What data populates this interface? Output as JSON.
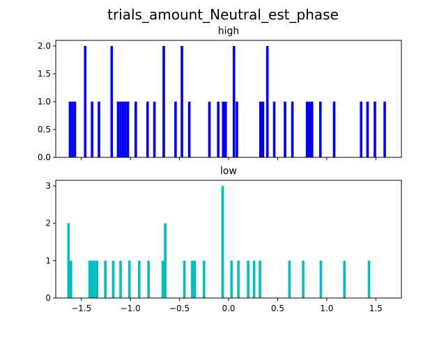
{
  "figure": {
    "title": "trials_amount_Neutral_est_phase"
  },
  "chart_data": [
    {
      "type": "bar",
      "title": "high",
      "color": "#0000ff",
      "xlim": [
        -1.76,
        1.76
      ],
      "ylim": [
        0,
        2.1
      ],
      "xticks": [
        -1.5,
        -1.0,
        -0.5,
        0.0,
        0.5,
        1.0,
        1.5
      ],
      "xtick_labels": [],
      "yticks": [
        0.0,
        0.5,
        1.0,
        1.5,
        2.0
      ],
      "ytick_labels": [
        "0.0",
        "0.5",
        "1.0",
        "1.5",
        "2.0"
      ],
      "bin_width": 0.0257,
      "bars": [
        {
          "x": -1.615,
          "v": 1
        },
        {
          "x": -1.59,
          "v": 1
        },
        {
          "x": -1.565,
          "v": 1
        },
        {
          "x": -1.46,
          "v": 2
        },
        {
          "x": -1.39,
          "v": 1
        },
        {
          "x": -1.32,
          "v": 1
        },
        {
          "x": -1.19,
          "v": 2
        },
        {
          "x": -1.125,
          "v": 1
        },
        {
          "x": -1.1,
          "v": 1
        },
        {
          "x": -1.075,
          "v": 1
        },
        {
          "x": -1.05,
          "v": 1
        },
        {
          "x": -1.025,
          "v": 1
        },
        {
          "x": -0.945,
          "v": 1
        },
        {
          "x": -0.825,
          "v": 1
        },
        {
          "x": -0.755,
          "v": 1
        },
        {
          "x": -0.66,
          "v": 2
        },
        {
          "x": -0.54,
          "v": 1
        },
        {
          "x": -0.475,
          "v": 2
        },
        {
          "x": -0.4,
          "v": 1
        },
        {
          "x": -0.195,
          "v": 1
        },
        {
          "x": -0.105,
          "v": 1
        },
        {
          "x": -0.055,
          "v": 1
        },
        {
          "x": -0.03,
          "v": 1
        },
        {
          "x": 0.055,
          "v": 2
        },
        {
          "x": 0.085,
          "v": 1
        },
        {
          "x": 0.325,
          "v": 1
        },
        {
          "x": 0.35,
          "v": 1
        },
        {
          "x": 0.395,
          "v": 2
        },
        {
          "x": 0.465,
          "v": 1
        },
        {
          "x": 0.575,
          "v": 1
        },
        {
          "x": 0.65,
          "v": 1
        },
        {
          "x": 0.8,
          "v": 1
        },
        {
          "x": 0.825,
          "v": 1
        },
        {
          "x": 0.85,
          "v": 1
        },
        {
          "x": 0.935,
          "v": 1
        },
        {
          "x": 1.075,
          "v": 1
        },
        {
          "x": 1.35,
          "v": 1
        },
        {
          "x": 1.415,
          "v": 1
        },
        {
          "x": 1.49,
          "v": 1
        },
        {
          "x": 1.59,
          "v": 1
        }
      ]
    },
    {
      "type": "bar",
      "title": "low",
      "color": "#00bfbf",
      "xlim": [
        -1.76,
        1.76
      ],
      "ylim": [
        0,
        3.15
      ],
      "xticks": [
        -1.5,
        -1.0,
        -0.5,
        0.0,
        0.5,
        1.0,
        1.5
      ],
      "xtick_labels": [
        "−1.5",
        "−1.0",
        "−0.5",
        "0.0",
        "0.5",
        "1.0",
        "1.5"
      ],
      "yticks": [
        0,
        1,
        2,
        3
      ],
      "ytick_labels": [
        "0",
        "1",
        "2",
        "3"
      ],
      "bin_width": 0.0257,
      "bars": [
        {
          "x": -1.63,
          "v": 2
        },
        {
          "x": -1.605,
          "v": 1
        },
        {
          "x": -1.415,
          "v": 1
        },
        {
          "x": -1.39,
          "v": 1
        },
        {
          "x": -1.365,
          "v": 1
        },
        {
          "x": -1.34,
          "v": 1
        },
        {
          "x": -1.255,
          "v": 1
        },
        {
          "x": -1.175,
          "v": 1
        },
        {
          "x": -1.1,
          "v": 1
        },
        {
          "x": -1.01,
          "v": 1
        },
        {
          "x": -0.91,
          "v": 1
        },
        {
          "x": -0.815,
          "v": 1
        },
        {
          "x": -0.67,
          "v": 1
        },
        {
          "x": -0.645,
          "v": 2
        },
        {
          "x": -0.45,
          "v": 1
        },
        {
          "x": -0.37,
          "v": 1
        },
        {
          "x": -0.345,
          "v": 1
        },
        {
          "x": -0.25,
          "v": 1
        },
        {
          "x": -0.06,
          "v": 3
        },
        {
          "x": 0.03,
          "v": 1
        },
        {
          "x": 0.1,
          "v": 1
        },
        {
          "x": 0.2,
          "v": 1
        },
        {
          "x": 0.26,
          "v": 1
        },
        {
          "x": 0.32,
          "v": 1
        },
        {
          "x": 0.62,
          "v": 1
        },
        {
          "x": 0.76,
          "v": 1
        },
        {
          "x": 0.94,
          "v": 1
        },
        {
          "x": 1.18,
          "v": 1
        },
        {
          "x": 1.43,
          "v": 1
        }
      ]
    }
  ]
}
